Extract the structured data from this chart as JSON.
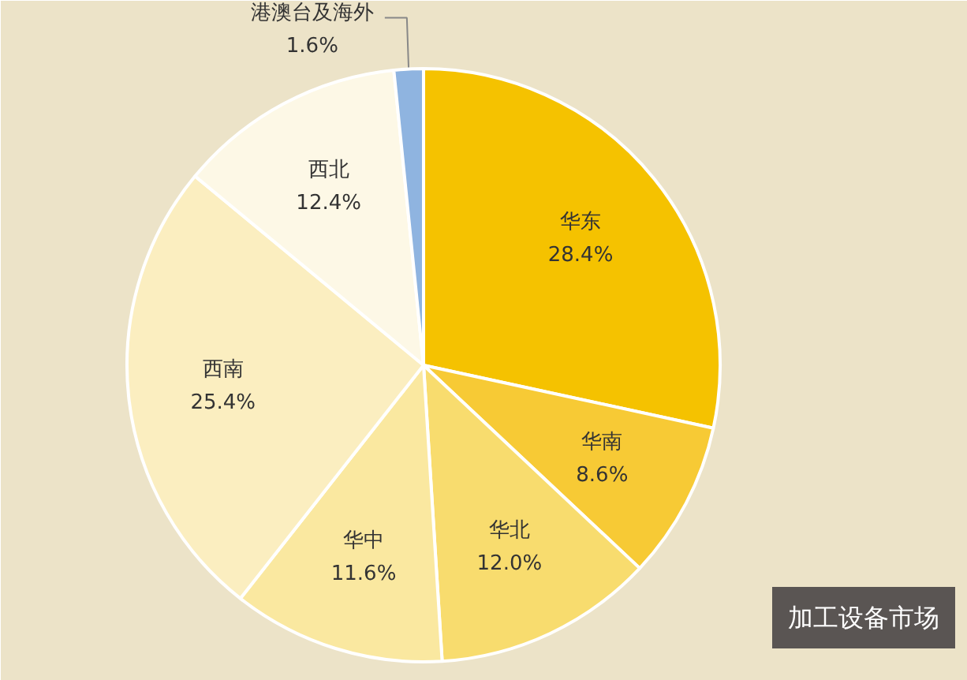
{
  "chart_data": {
    "type": "pie",
    "categories": [
      "华东",
      "华南",
      "华北",
      "华中",
      "西南",
      "西北",
      "港澳台及海外"
    ],
    "values": [
      28.4,
      8.6,
      12.0,
      11.6,
      25.4,
      12.4,
      1.6
    ],
    "colors": [
      "#f5c200",
      "#f7ca35",
      "#f8dc6e",
      "#fae8a0",
      "#fbeec0",
      "#fdf8e6",
      "#8fb4e0"
    ],
    "value_labels": [
      "28.4%",
      "8.6%",
      "12.0%",
      "11.6%",
      "25.4%",
      "12.4%",
      "1.6%"
    ],
    "annotations": [
      "加工设备市场"
    ]
  }
}
